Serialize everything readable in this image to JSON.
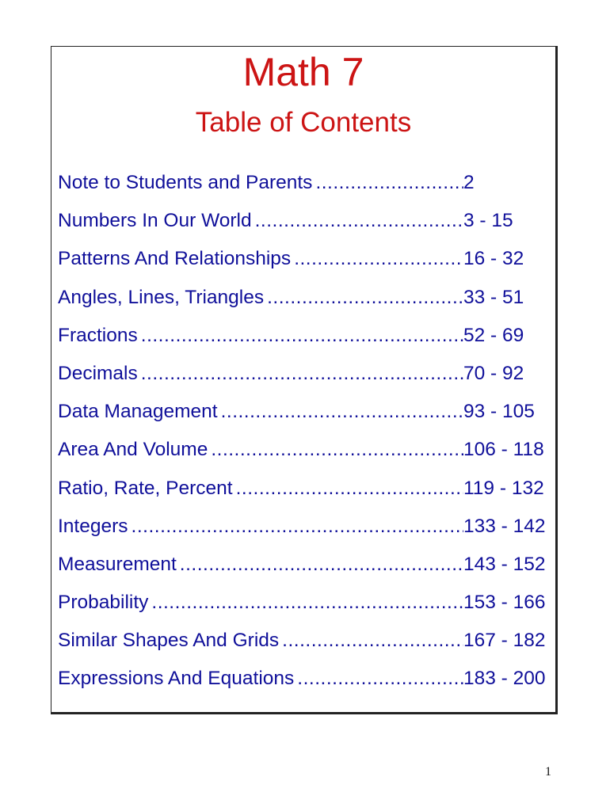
{
  "title": "Math 7",
  "subtitle": "Table of Contents",
  "entries": [
    {
      "label": "Note to Students and Parents",
      "pages": "2"
    },
    {
      "label": "Numbers In Our World",
      "pages": "3 - 15"
    },
    {
      "label": "Patterns And Relationships",
      "pages": "16 - 32"
    },
    {
      "label": "Angles, Lines, Triangles",
      "pages": "33 - 51"
    },
    {
      "label": "Fractions",
      "pages": "52 - 69"
    },
    {
      "label": "Decimals",
      "pages": "70 - 92"
    },
    {
      "label": "Data Management",
      "pages": "93 - 105"
    },
    {
      "label": "Area And Volume",
      "pages": "106 - 118"
    },
    {
      "label": "Ratio, Rate, Percent",
      "pages": "119 - 132"
    },
    {
      "label": "Integers",
      "pages": "133 - 142"
    },
    {
      "label": "Measurement",
      "pages": "143 - 152"
    },
    {
      "label": "Probability",
      "pages": "153 - 166"
    },
    {
      "label": "Similar Shapes And Grids",
      "pages": "167 - 182"
    },
    {
      "label": "Expressions And Equations",
      "pages": "183 - 200"
    }
  ],
  "page_number": "1",
  "colors": {
    "title": "#cc1414",
    "entries": "#10109a"
  }
}
